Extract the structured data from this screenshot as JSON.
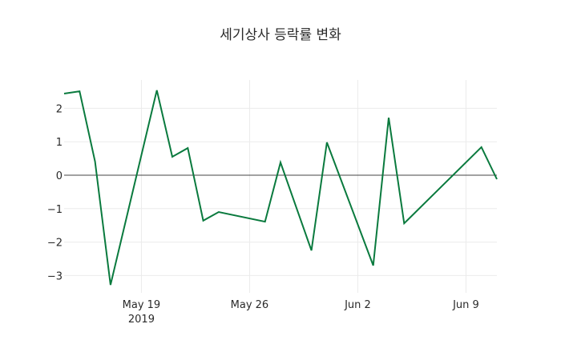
{
  "chart_data": {
    "type": "line",
    "title": "세기상사 등락률 변화",
    "xlabel": "",
    "ylabel": "",
    "x": [
      "2019-05-14",
      "2019-05-15",
      "2019-05-16",
      "2019-05-17",
      "2019-05-20",
      "2019-05-21",
      "2019-05-22",
      "2019-05-23",
      "2019-05-24",
      "2019-05-27",
      "2019-05-28",
      "2019-05-30",
      "2019-05-31",
      "2019-06-03",
      "2019-06-04",
      "2019-06-05",
      "2019-06-10",
      "2019-06-11"
    ],
    "series": [
      {
        "name": "등락률",
        "color": "#0a7a3e",
        "values": [
          2.44,
          2.51,
          0.41,
          -3.28,
          2.54,
          0.55,
          0.81,
          -1.36,
          -1.1,
          -1.39,
          0.38,
          -2.25,
          0.98,
          -2.7,
          1.72,
          -1.44,
          0.84,
          -0.12
        ]
      }
    ],
    "x_ticks": [
      {
        "label": "May 19",
        "sublabel": "2019",
        "date": "2019-05-19"
      },
      {
        "label": "May 26",
        "sublabel": "",
        "date": "2019-05-26"
      },
      {
        "label": "Jun 2",
        "sublabel": "",
        "date": "2019-06-02"
      },
      {
        "label": "Jun 9",
        "sublabel": "",
        "date": "2019-06-09"
      }
    ],
    "y_ticks": [
      2,
      1,
      0,
      -1,
      -2,
      -3
    ],
    "y_tick_labels": [
      "2",
      "1",
      "0",
      "−1",
      "−2",
      "−3"
    ],
    "xlim": [
      "2019-05-14",
      "2019-06-11"
    ],
    "ylim": [
      -3.5,
      2.9
    ],
    "grid": true,
    "zero_line": true,
    "legend": "none"
  }
}
